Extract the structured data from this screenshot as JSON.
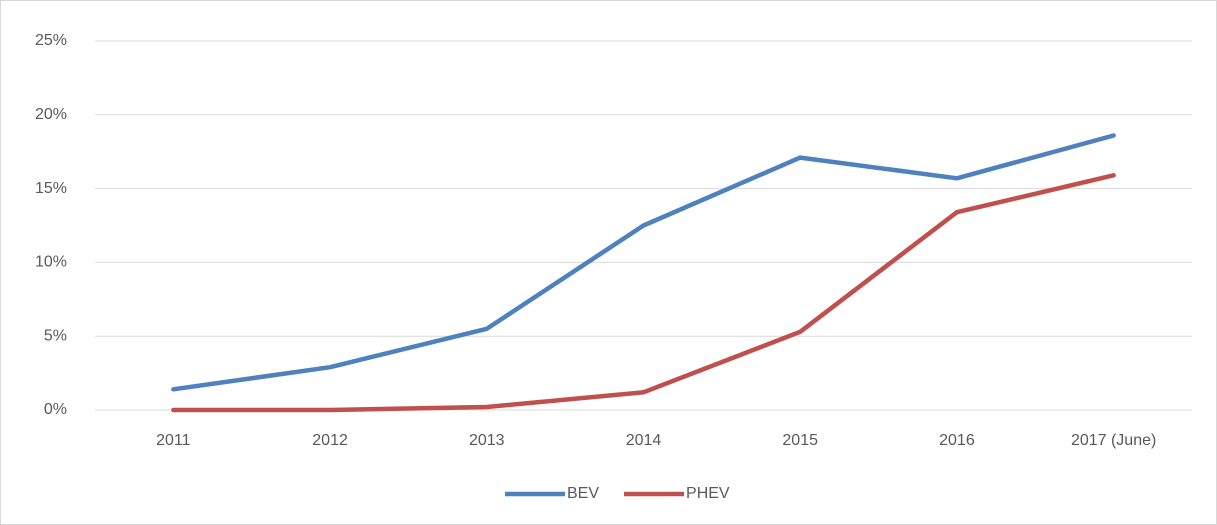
{
  "chart_data": {
    "type": "line",
    "categories": [
      "2011",
      "2012",
      "2013",
      "2014",
      "2015",
      "2016",
      "2017 (June)"
    ],
    "series": [
      {
        "name": "BEV",
        "color": "#4f81bd",
        "values": [
          1.4,
          2.9,
          5.5,
          12.5,
          17.1,
          15.7,
          18.6
        ]
      },
      {
        "name": "PHEV",
        "color": "#c0504d",
        "values": [
          0,
          0,
          0.2,
          1.2,
          5.3,
          13.4,
          15.9
        ]
      }
    ],
    "ylim": [
      0,
      25
    ],
    "yticks": [
      {
        "value": 0,
        "label": "0%"
      },
      {
        "value": 5,
        "label": "5%"
      },
      {
        "value": 10,
        "label": "10%"
      },
      {
        "value": 15,
        "label": "15%"
      },
      {
        "value": 20,
        "label": "20%"
      },
      {
        "value": 25,
        "label": "25%"
      }
    ],
    "grid": true,
    "legend": "bottom"
  }
}
